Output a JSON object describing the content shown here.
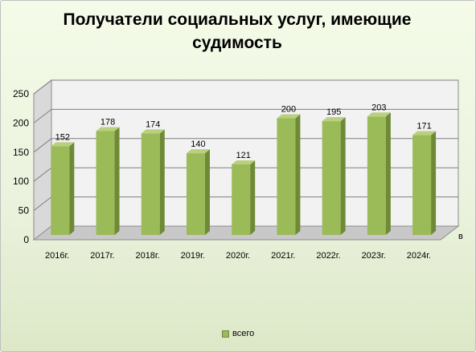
{
  "title": "Получатели  социальных услуг, имеющие судимость",
  "chart_data": {
    "type": "bar",
    "categories": [
      "2016г.",
      "2017г.",
      "2018г.",
      "2019г.",
      "2020г.",
      "2021г.",
      "2022г.",
      "2023г.",
      "2024г."
    ],
    "series": [
      {
        "name": "всего",
        "values": [
          152,
          178,
          174,
          140,
          121,
          200,
          195,
          203,
          171
        ]
      }
    ],
    "ylim": [
      0,
      250
    ],
    "yticks": [
      0,
      50,
      100,
      150,
      200,
      250
    ],
    "axis_depth_label": "в",
    "grid": true,
    "legend_position": "bottom",
    "colors": {
      "bar_front": "#9bbb59",
      "bar_side": "#6f8a36",
      "bar_top": "#b9d07f",
      "gridline": "#7f7f7f",
      "wall": "#f2f2f2",
      "side_wall": "#d9d9d9",
      "floor": "#c8c8c8"
    }
  }
}
